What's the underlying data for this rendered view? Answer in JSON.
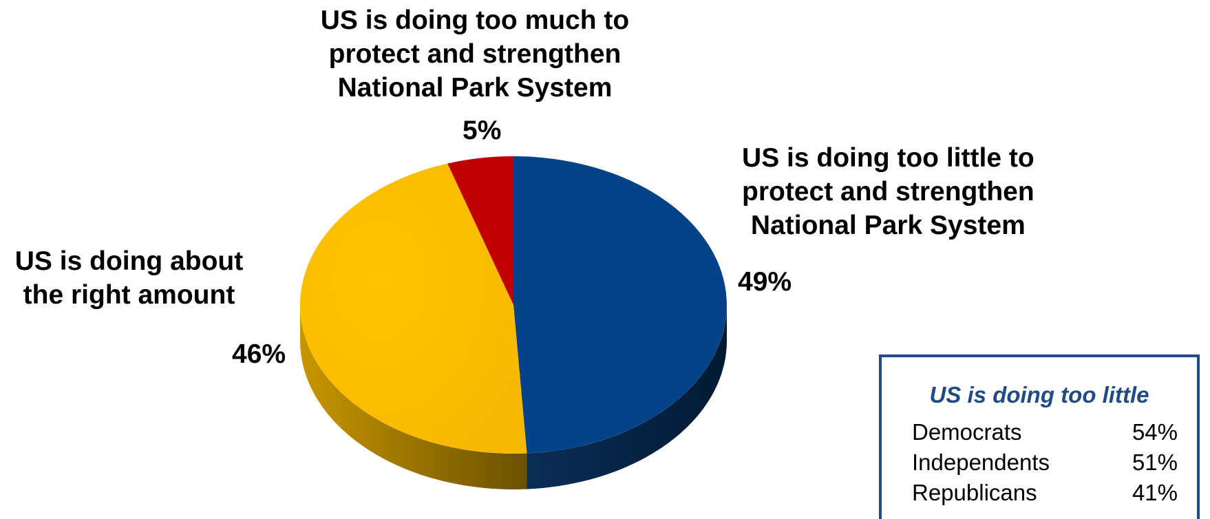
{
  "chart_data": {
    "type": "pie",
    "slices": [
      {
        "label": [
          "US is doing too little to",
          "protect and strengthen",
          "National Park System"
        ],
        "value": 49,
        "value_label": "49%",
        "color": "#024287",
        "side_color": "#011a33"
      },
      {
        "label": [
          "US is doing about",
          "the right amount"
        ],
        "value": 46,
        "value_label": "46%",
        "color": "#fdbf00",
        "side_color": "#8c6a00"
      },
      {
        "label": [
          "US is doing too much to",
          "protect and strengthen",
          "National Park System"
        ],
        "value": 5,
        "value_label": "5%",
        "color": "#c00000",
        "side_color": "#600000"
      }
    ],
    "inset": {
      "title": "US is doing too little",
      "rows": [
        {
          "group": "Democrats",
          "value": "54%"
        },
        {
          "group": "Independents",
          "value": "51%"
        },
        {
          "group": "Republicans",
          "value": "41%"
        }
      ]
    }
  }
}
